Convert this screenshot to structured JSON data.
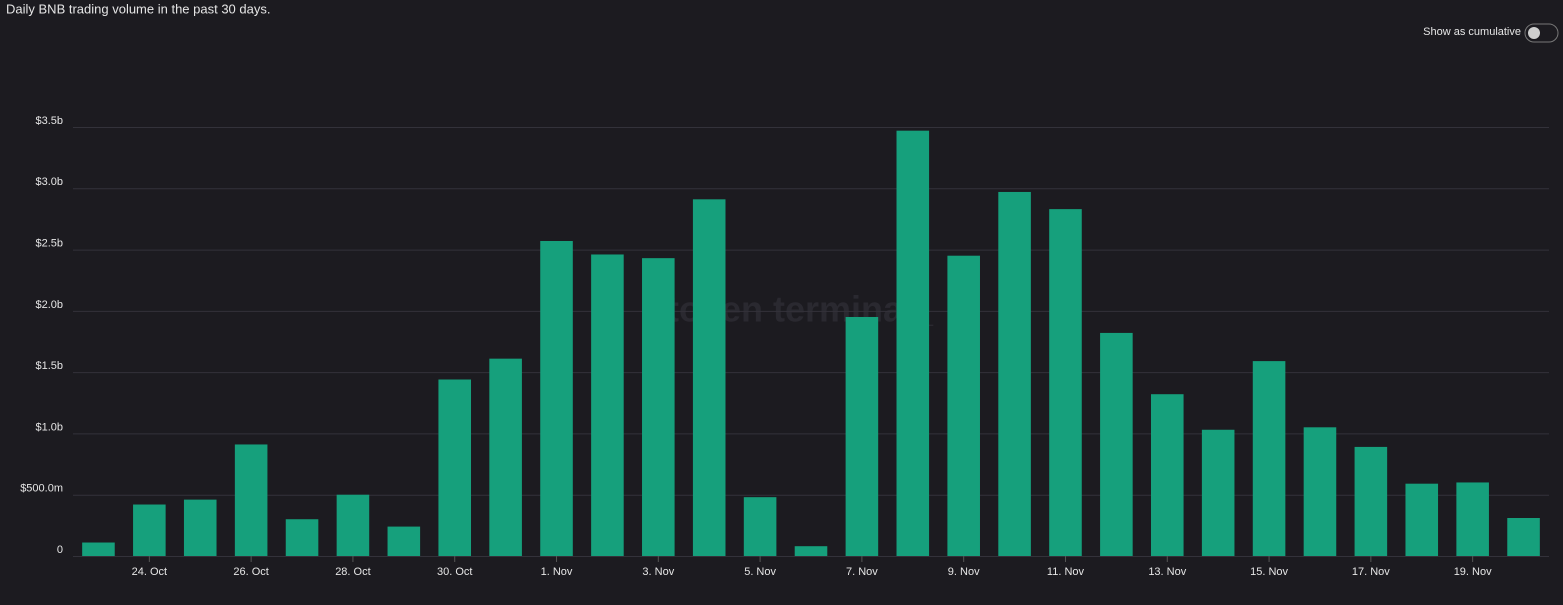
{
  "chart_data": {
    "type": "bar",
    "title": "Daily BNB trading volume in the past 30 days.",
    "toggle_label": "Show as cumulative",
    "watermark": "token terminal_",
    "categories": [
      null,
      "24. Oct",
      null,
      "26. Oct",
      null,
      "28. Oct",
      null,
      "30. Oct",
      null,
      "1. Nov",
      null,
      "3. Nov",
      null,
      "5. Nov",
      null,
      "7. Nov",
      null,
      "9. Nov",
      null,
      "11. Nov",
      null,
      "13. Nov",
      null,
      "15. Nov",
      null,
      "17. Nov",
      null,
      "19. Nov",
      null
    ],
    "values": [
      110000000,
      420000000,
      460000000,
      910000000,
      300000000,
      500000000,
      240000000,
      1440000000,
      1610000000,
      2570000000,
      2460000000,
      2430000000,
      2910000000,
      480000000,
      80000000,
      1950000000,
      3470000000,
      2450000000,
      2970000000,
      2830000000,
      1820000000,
      1320000000,
      1030000000,
      1590000000,
      1050000000,
      890000000,
      590000000,
      600000000,
      310000000
    ],
    "color": "#16a07c",
    "ylim": [
      0,
      3500000000
    ],
    "yticks": [
      0,
      {
        "value": 500000000,
        "label": "$500.0m"
      },
      {
        "value": 1000000000,
        "label": "$1.0b"
      },
      {
        "value": 1500000000,
        "label": "$1.5b"
      },
      {
        "value": 2000000000,
        "label": "$2.0b"
      },
      {
        "value": 2500000000,
        "label": "$2.5b"
      },
      {
        "value": 3000000000,
        "label": "$3.0b"
      },
      {
        "value": 3500000000,
        "label": "$3.5b"
      }
    ],
    "grid": true
  }
}
